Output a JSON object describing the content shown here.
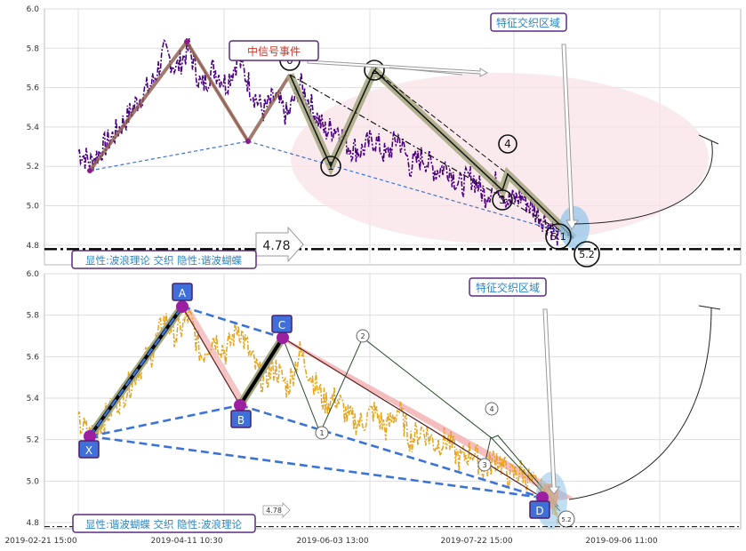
{
  "chart_data": [
    {
      "type": "line",
      "panel": "top",
      "ylim": [
        4.7,
        6.0
      ],
      "yticks": [
        "6.0",
        "5.8",
        "5.6",
        "5.4",
        "5.2",
        "5.0",
        "4.8"
      ],
      "grid": true,
      "annotations": {
        "zone_label": "特征交织区域",
        "signal_label": "中信号事件",
        "price_level": "4.78",
        "level_value": 4.78,
        "footer": "显性:波浪理论 交织 隐性:谐波蝴蝶"
      },
      "wave_labels": [
        "0",
        "2",
        "4",
        "1",
        "3",
        "5.1",
        "5.2"
      ],
      "series": [
        {
          "values": [
            [
              0.0,
              5.28
            ],
            [
              0.02,
              5.22
            ],
            [
              0.05,
              5.33
            ],
            [
              0.08,
              5.45
            ],
            [
              0.1,
              5.55
            ],
            [
              0.12,
              5.62
            ],
            [
              0.14,
              5.78
            ],
            [
              0.16,
              5.7
            ],
            [
              0.18,
              5.8
            ],
            [
              0.2,
              5.6
            ],
            [
              0.22,
              5.7
            ],
            [
              0.24,
              5.62
            ],
            [
              0.26,
              5.75
            ],
            [
              0.28,
              5.6
            ],
            [
              0.3,
              5.48
            ],
            [
              0.32,
              5.55
            ],
            [
              0.34,
              5.45
            ],
            [
              0.36,
              5.62
            ],
            [
              0.38,
              5.5
            ],
            [
              0.4,
              5.38
            ],
            [
              0.42,
              5.4
            ],
            [
              0.44,
              5.3
            ],
            [
              0.46,
              5.28
            ],
            [
              0.48,
              5.34
            ],
            [
              0.5,
              5.25
            ],
            [
              0.52,
              5.35
            ],
            [
              0.54,
              5.2
            ],
            [
              0.56,
              5.25
            ],
            [
              0.58,
              5.18
            ],
            [
              0.6,
              5.2
            ],
            [
              0.62,
              5.1
            ],
            [
              0.64,
              5.15
            ],
            [
              0.66,
              5.05
            ],
            [
              0.68,
              5.12
            ],
            [
              0.7,
              5.02
            ],
            [
              0.72,
              5.05
            ],
            [
              0.74,
              4.98
            ],
            [
              0.76,
              4.92
            ],
            [
              0.78,
              4.85
            ]
          ]
        }
      ]
    },
    {
      "type": "line",
      "panel": "bottom",
      "ylim": [
        4.77,
        6.0
      ],
      "yticks": [
        "6.0",
        "5.8",
        "5.6",
        "5.4",
        "5.2",
        "5.0",
        "4.8"
      ],
      "xticks": [
        "2019-02-21 15:00",
        "2019-04-11 10:30",
        "2019-06-03 13:00",
        "2019-07-22 15:00",
        "2019-09-06 11:00"
      ],
      "grid": true,
      "annotations": {
        "zone_label": "特征交织区域",
        "price_level": "4.78",
        "level_value": 4.78,
        "footer": "显性:谐波蝴蝶 交织 隐性:波浪理论"
      },
      "pattern_points": [
        {
          "name": "X",
          "x": 0.0,
          "y": 5.17
        },
        {
          "name": "A",
          "x": 0.14,
          "y": 5.83
        },
        {
          "name": "B",
          "x": 0.22,
          "y": 5.32
        },
        {
          "name": "C",
          "x": 0.28,
          "y": 5.65
        },
        {
          "name": "D",
          "x": 0.75,
          "y": 4.84
        }
      ],
      "wave_labels": [
        "2",
        "4",
        "1",
        "3",
        "5.2"
      ],
      "series": [
        {
          "values": [
            [
              0.0,
              5.28
            ],
            [
              0.02,
              5.22
            ],
            [
              0.05,
              5.33
            ],
            [
              0.08,
              5.45
            ],
            [
              0.1,
              5.55
            ],
            [
              0.12,
              5.62
            ],
            [
              0.14,
              5.78
            ],
            [
              0.16,
              5.7
            ],
            [
              0.18,
              5.8
            ],
            [
              0.2,
              5.6
            ],
            [
              0.22,
              5.7
            ],
            [
              0.24,
              5.62
            ],
            [
              0.26,
              5.75
            ],
            [
              0.28,
              5.6
            ],
            [
              0.3,
              5.48
            ],
            [
              0.32,
              5.55
            ],
            [
              0.34,
              5.45
            ],
            [
              0.36,
              5.62
            ],
            [
              0.38,
              5.5
            ],
            [
              0.4,
              5.38
            ],
            [
              0.42,
              5.4
            ],
            [
              0.44,
              5.3
            ],
            [
              0.46,
              5.28
            ],
            [
              0.48,
              5.34
            ],
            [
              0.5,
              5.25
            ],
            [
              0.52,
              5.35
            ],
            [
              0.54,
              5.2
            ],
            [
              0.56,
              5.25
            ],
            [
              0.58,
              5.18
            ],
            [
              0.6,
              5.2
            ],
            [
              0.62,
              5.1
            ],
            [
              0.64,
              5.15
            ],
            [
              0.66,
              5.05
            ],
            [
              0.68,
              5.12
            ],
            [
              0.7,
              5.02
            ],
            [
              0.72,
              5.05
            ],
            [
              0.74,
              4.98
            ],
            [
              0.76,
              4.92
            ],
            [
              0.78,
              4.85
            ]
          ]
        }
      ]
    }
  ],
  "colors": {
    "purple_line": "#4B0082",
    "orange_line": "#E8A317",
    "wave_fill": "#A4A77F",
    "pattern_fill": "#F4B6B6",
    "box_border": "#5B2C83",
    "box_text": "#2E86C1",
    "blue_dash": "#3B73D6",
    "point_blue": "#3F6FD8",
    "ellipse": "#F8E1E7"
  }
}
